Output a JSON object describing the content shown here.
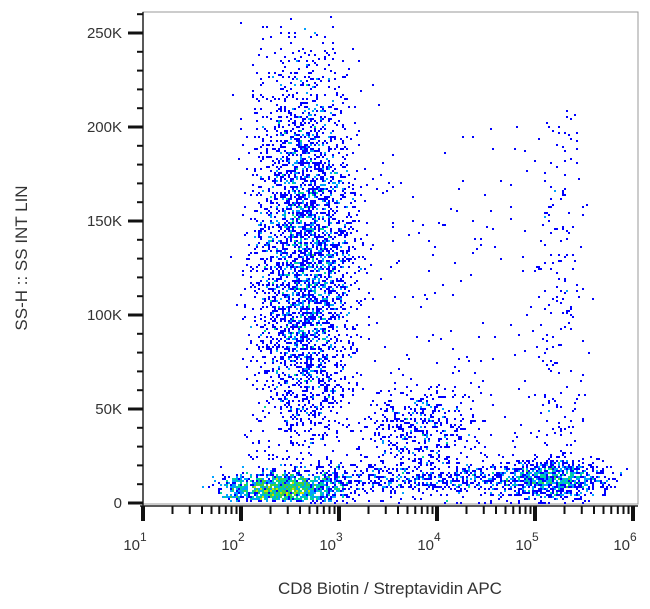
{
  "chart_data": {
    "type": "scatter",
    "subtype": "flow-cytometry-density-dot-plot",
    "xlabel": "CD8 Biotin / Streptavidin APC",
    "ylabel": "SS-H :: SS INT LIN",
    "x_scale": "log",
    "xlim": [
      10,
      1000000
    ],
    "x_ticks": [
      {
        "value": 10,
        "base": "10",
        "exp": "1"
      },
      {
        "value": 100,
        "base": "10",
        "exp": "2"
      },
      {
        "value": 1000,
        "base": "10",
        "exp": "3"
      },
      {
        "value": 10000,
        "base": "10",
        "exp": "4"
      },
      {
        "value": 100000,
        "base": "10",
        "exp": "5"
      },
      {
        "value": 1000000,
        "base": "10",
        "exp": "6"
      }
    ],
    "y_scale": "linear",
    "ylim": [
      -2000,
      262000
    ],
    "y_ticks": [
      {
        "value": 0,
        "label": "0"
      },
      {
        "value": 50000,
        "label": "50K"
      },
      {
        "value": 100000,
        "label": "100K"
      },
      {
        "value": 150000,
        "label": "150K"
      },
      {
        "value": 200000,
        "label": "200K"
      },
      {
        "value": 250000,
        "label": "250K"
      }
    ],
    "grid": false,
    "legend": "none",
    "color_scale": [
      "#0000ff",
      "#00a0ff",
      "#00d0a0",
      "#40d040",
      "#c8e000",
      "#ffd000",
      "#ff8000",
      "#ff1800"
    ],
    "populations": [
      {
        "x_center": 450,
        "y_center": 135000,
        "y_spread": 45000,
        "count": 3600
      },
      {
        "x_center": 260,
        "y_center": 8000,
        "y_spread": 4000,
        "count": 1700
      },
      {
        "x_center": 7000,
        "y_center": 40000,
        "y_spread": 12000,
        "count": 420
      },
      {
        "x_center": 170000,
        "y_center": 13000,
        "y_spread": 5000,
        "count": 700
      },
      {
        "x_center": 180000,
        "y_center": 120000,
        "y_spread": 60000,
        "count": 160
      },
      {
        "x_center": 8000,
        "y_center": 13000,
        "y_spread": 4000,
        "count": 700
      }
    ]
  }
}
